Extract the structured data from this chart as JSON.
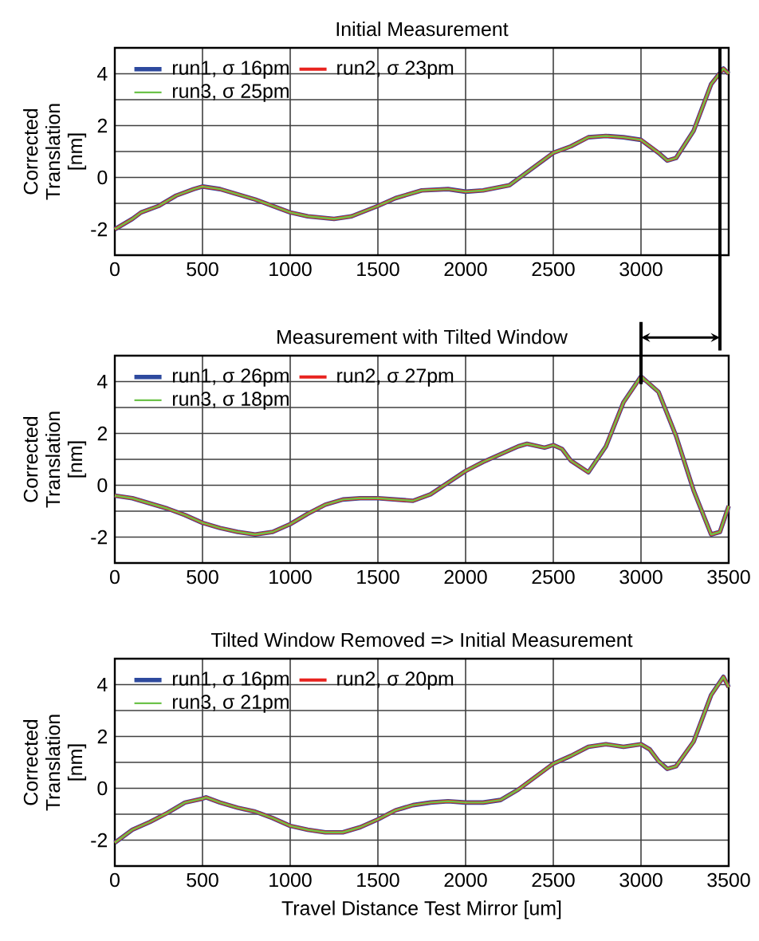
{
  "chart_data": [
    {
      "type": "line",
      "title": "Initial Measurement",
      "ylabel": "Corrected Translation [nm]",
      "x": [
        0,
        100,
        150,
        250,
        350,
        450,
        500,
        600,
        700,
        800,
        900,
        1000,
        1100,
        1250,
        1350,
        1500,
        1600,
        1750,
        1900,
        2000,
        2100,
        2250,
        2350,
        2500,
        2600,
        2700,
        2800,
        2900,
        3000,
        3100,
        3150,
        3200,
        3300,
        3400,
        3470,
        3500
      ],
      "series": [
        {
          "name": "run1, σ 16pm",
          "color": "#2e4a9e",
          "values": [
            -2.0,
            -1.6,
            -1.35,
            -1.1,
            -0.7,
            -0.45,
            -0.35,
            -0.45,
            -0.65,
            -0.85,
            -1.1,
            -1.35,
            -1.5,
            -1.6,
            -1.5,
            -1.1,
            -0.8,
            -0.5,
            -0.45,
            -0.55,
            -0.5,
            -0.3,
            0.2,
            0.95,
            1.2,
            1.55,
            1.6,
            1.55,
            1.45,
            0.95,
            0.65,
            0.75,
            1.8,
            3.6,
            4.2,
            4.0
          ]
        },
        {
          "name": "run2, σ 23pm",
          "color": "#e8231f",
          "values": [
            -2.0,
            -1.6,
            -1.35,
            -1.1,
            -0.7,
            -0.45,
            -0.35,
            -0.45,
            -0.65,
            -0.85,
            -1.1,
            -1.35,
            -1.5,
            -1.6,
            -1.5,
            -1.1,
            -0.8,
            -0.5,
            -0.45,
            -0.55,
            -0.5,
            -0.3,
            0.2,
            0.95,
            1.2,
            1.55,
            1.6,
            1.55,
            1.45,
            0.95,
            0.65,
            0.75,
            1.8,
            3.6,
            4.2,
            4.0
          ]
        },
        {
          "name": "run3, σ 25pm",
          "color": "#6cc24a",
          "values": [
            -2.0,
            -1.6,
            -1.35,
            -1.1,
            -0.7,
            -0.45,
            -0.35,
            -0.45,
            -0.65,
            -0.85,
            -1.1,
            -1.35,
            -1.5,
            -1.6,
            -1.5,
            -1.1,
            -0.8,
            -0.5,
            -0.45,
            -0.55,
            -0.5,
            -0.3,
            0.2,
            0.95,
            1.2,
            1.55,
            1.6,
            1.55,
            1.45,
            0.95,
            0.65,
            0.75,
            1.8,
            3.6,
            4.2,
            4.0
          ]
        }
      ],
      "xlim": [
        0,
        3500
      ],
      "ylim": [
        -3,
        5
      ],
      "xticks": [
        0,
        500,
        1000,
        1500,
        2000,
        2500,
        3000,
        {
          "value": 3500,
          "label": null
        }
      ],
      "yticks": [
        -2,
        0,
        2,
        4
      ],
      "ref_lines": [
        {
          "axis": "x",
          "value": 3450,
          "color": "#000000"
        }
      ],
      "grid": true,
      "legend": "top left"
    },
    {
      "type": "line",
      "title": "Measurement with Tilted Window",
      "ylabel": "Corrected Translation [nm]",
      "x": [
        0,
        100,
        200,
        300,
        400,
        500,
        600,
        700,
        800,
        900,
        1000,
        1100,
        1200,
        1300,
        1400,
        1500,
        1600,
        1700,
        1800,
        1900,
        2000,
        2100,
        2200,
        2300,
        2350,
        2450,
        2500,
        2550,
        2600,
        2700,
        2800,
        2900,
        3000,
        3100,
        3200,
        3300,
        3400,
        3450,
        3500
      ],
      "series": [
        {
          "name": "run1, σ 26pm",
          "color": "#2e4a9e",
          "values": [
            -0.4,
            -0.5,
            -0.7,
            -0.9,
            -1.15,
            -1.45,
            -1.65,
            -1.8,
            -1.9,
            -1.8,
            -1.5,
            -1.1,
            -0.75,
            -0.55,
            -0.5,
            -0.5,
            -0.55,
            -0.6,
            -0.35,
            0.1,
            0.55,
            0.9,
            1.2,
            1.5,
            1.6,
            1.45,
            1.55,
            1.4,
            0.95,
            0.5,
            1.5,
            3.2,
            4.2,
            3.6,
            1.9,
            -0.2,
            -1.9,
            -1.8,
            -0.8
          ]
        },
        {
          "name": "run2, σ 27pm",
          "color": "#e8231f",
          "values": [
            -0.4,
            -0.5,
            -0.7,
            -0.9,
            -1.15,
            -1.45,
            -1.65,
            -1.8,
            -1.9,
            -1.8,
            -1.5,
            -1.1,
            -0.75,
            -0.55,
            -0.5,
            -0.5,
            -0.55,
            -0.6,
            -0.35,
            0.1,
            0.55,
            0.9,
            1.2,
            1.5,
            1.6,
            1.45,
            1.55,
            1.4,
            0.95,
            0.5,
            1.5,
            3.2,
            4.2,
            3.6,
            1.9,
            -0.2,
            -1.9,
            -1.8,
            -0.8
          ]
        },
        {
          "name": "run3, σ 18pm",
          "color": "#6cc24a",
          "values": [
            -0.4,
            -0.5,
            -0.7,
            -0.9,
            -1.15,
            -1.45,
            -1.65,
            -1.8,
            -1.9,
            -1.8,
            -1.5,
            -1.1,
            -0.75,
            -0.55,
            -0.5,
            -0.5,
            -0.55,
            -0.6,
            -0.35,
            0.1,
            0.55,
            0.9,
            1.2,
            1.5,
            1.6,
            1.45,
            1.55,
            1.4,
            0.95,
            0.5,
            1.5,
            3.2,
            4.2,
            3.6,
            1.9,
            -0.2,
            -1.9,
            -1.8,
            -0.8
          ]
        }
      ],
      "xlim": [
        0,
        3500
      ],
      "ylim": [
        -3,
        5
      ],
      "xticks": [
        0,
        500,
        1000,
        1500,
        2000,
        2500,
        3000,
        3500
      ],
      "yticks": [
        -2,
        0,
        2,
        4
      ],
      "grid": true,
      "legend": "top left"
    },
    {
      "type": "line",
      "title": "Tilted Window Removed => Initial Measurement",
      "xlabel": "Travel Distance Test Mirror [um]",
      "ylabel": "Corrected Translation [nm]",
      "x": [
        0,
        100,
        200,
        300,
        400,
        500,
        520,
        600,
        700,
        800,
        900,
        1000,
        1100,
        1200,
        1300,
        1400,
        1500,
        1600,
        1700,
        1800,
        1900,
        2000,
        2100,
        2200,
        2300,
        2400,
        2500,
        2600,
        2700,
        2800,
        2900,
        3000,
        3050,
        3100,
        3150,
        3200,
        3300,
        3400,
        3470,
        3500
      ],
      "series": [
        {
          "name": "run1, σ 16pm",
          "color": "#2e4a9e",
          "values": [
            -2.1,
            -1.6,
            -1.3,
            -0.95,
            -0.55,
            -0.4,
            -0.35,
            -0.55,
            -0.75,
            -0.9,
            -1.15,
            -1.45,
            -1.6,
            -1.7,
            -1.7,
            -1.5,
            -1.2,
            -0.85,
            -0.65,
            -0.55,
            -0.5,
            -0.55,
            -0.55,
            -0.45,
            -0.05,
            0.45,
            0.95,
            1.25,
            1.6,
            1.7,
            1.6,
            1.7,
            1.5,
            1.05,
            0.75,
            0.85,
            1.8,
            3.6,
            4.3,
            3.9
          ]
        },
        {
          "name": "run2, σ 20pm",
          "color": "#e8231f",
          "values": [
            -2.1,
            -1.6,
            -1.3,
            -0.95,
            -0.55,
            -0.4,
            -0.35,
            -0.55,
            -0.75,
            -0.9,
            -1.15,
            -1.45,
            -1.6,
            -1.7,
            -1.7,
            -1.5,
            -1.2,
            -0.85,
            -0.65,
            -0.55,
            -0.5,
            -0.55,
            -0.55,
            -0.45,
            -0.05,
            0.45,
            0.95,
            1.25,
            1.6,
            1.7,
            1.6,
            1.7,
            1.5,
            1.05,
            0.75,
            0.85,
            1.8,
            3.6,
            4.3,
            3.9
          ]
        },
        {
          "name": "run3, σ 21pm",
          "color": "#6cc24a",
          "values": [
            -2.1,
            -1.6,
            -1.3,
            -0.95,
            -0.55,
            -0.4,
            -0.35,
            -0.55,
            -0.75,
            -0.9,
            -1.15,
            -1.45,
            -1.6,
            -1.7,
            -1.7,
            -1.5,
            -1.2,
            -0.85,
            -0.65,
            -0.55,
            -0.5,
            -0.55,
            -0.55,
            -0.45,
            -0.05,
            0.45,
            0.95,
            1.25,
            1.6,
            1.7,
            1.6,
            1.7,
            1.5,
            1.05,
            0.75,
            0.85,
            1.8,
            3.6,
            4.3,
            3.9
          ]
        }
      ],
      "xlim": [
        0,
        3500
      ],
      "ylim": [
        -3,
        5
      ],
      "xticks": [
        0,
        500,
        1000,
        1500,
        2000,
        2500,
        3000,
        3500
      ],
      "yticks": [
        -2,
        0,
        2,
        4
      ],
      "grid": true,
      "legend": "top left"
    }
  ]
}
